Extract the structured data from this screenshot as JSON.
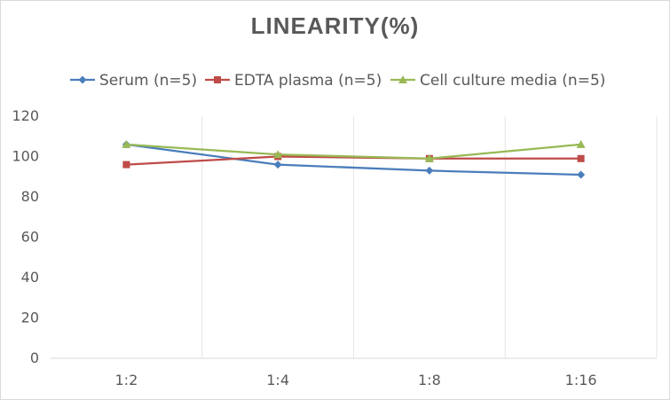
{
  "chart_data": {
    "type": "line",
    "title": "LINEARITY(%)",
    "categories": [
      "1:2",
      "1:4",
      "1:8",
      "1:16"
    ],
    "ylim": [
      0,
      120
    ],
    "yticks": [
      0,
      20,
      40,
      60,
      80,
      100,
      120
    ],
    "grid": {
      "horizontal": false,
      "vertical": true
    },
    "legend_position": "top",
    "series": [
      {
        "name": "Serum (n=5)",
        "color": "#4a7ebb",
        "marker": "diamond",
        "values": [
          106,
          96,
          93,
          91
        ]
      },
      {
        "name": "EDTA plasma (n=5)",
        "color": "#be4b48",
        "marker": "square",
        "values": [
          96,
          100,
          99,
          99
        ]
      },
      {
        "name": "Cell culture media (n=5)",
        "color": "#98b954",
        "marker": "triangle",
        "values": [
          106,
          101,
          99,
          106
        ]
      }
    ]
  }
}
